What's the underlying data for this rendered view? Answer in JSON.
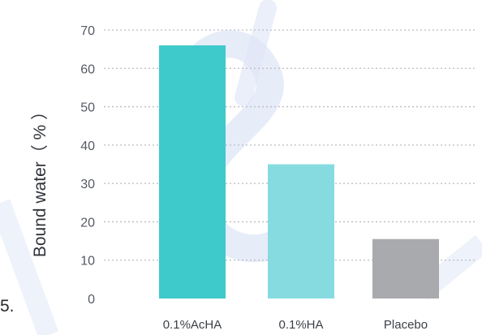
{
  "stray_text": "5.",
  "colors": {
    "watermark": "#dfe6f7",
    "grid": "#b9bcc2",
    "axis_text": "#555a63"
  },
  "chart_data": {
    "type": "bar",
    "title": "",
    "xlabel": "",
    "ylabel": "Bound water（ % ）",
    "ylim": [
      0,
      70
    ],
    "yticks": [
      0,
      10,
      20,
      30,
      40,
      50,
      60,
      70
    ],
    "grid": true,
    "categories": [
      "0.1%AcHA",
      "0.1%HA",
      "Placebo"
    ],
    "values": [
      66,
      35,
      15.5
    ],
    "bar_colors": [
      "#3ec9cb",
      "#86dbe0",
      "#a9aaad"
    ]
  }
}
